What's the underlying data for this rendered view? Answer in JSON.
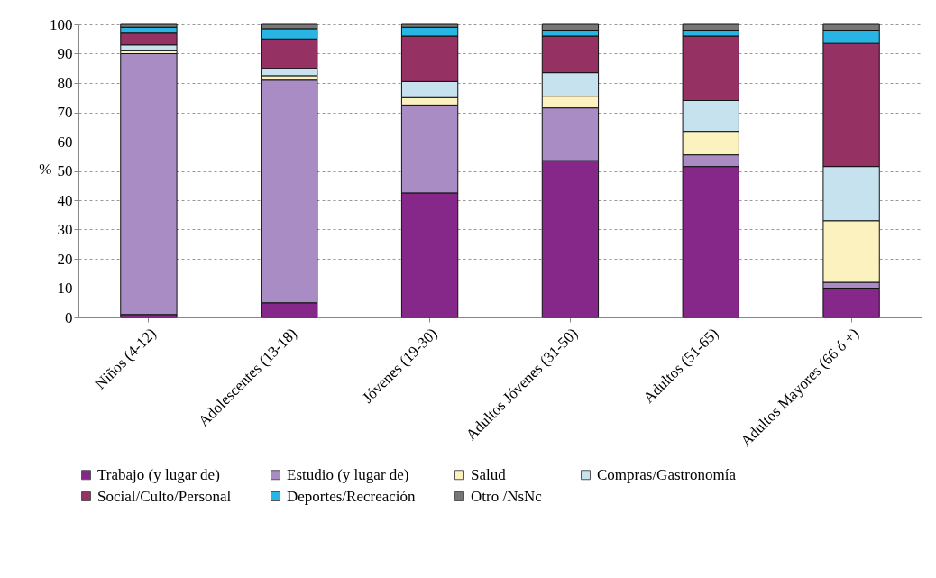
{
  "chart_data": {
    "type": "bar",
    "stacked": true,
    "ylabel": "%",
    "categories": [
      "Niños (4-12)",
      "Adolescentes (13-18)",
      "Jóvenes (19-30)",
      "Adultos Jóvenes (31-50)",
      "Adultos (51-65)",
      "Adultos Mayores (66 ó +)"
    ],
    "series": [
      {
        "name": "Trabajo (y lugar de)",
        "color": "#86278a",
        "values": [
          1,
          5,
          42.5,
          53.5,
          51.5,
          10
        ]
      },
      {
        "name": "Estudio (y lugar de)",
        "color": "#a98cc4",
        "values": [
          89,
          76,
          30,
          18,
          4,
          2
        ]
      },
      {
        "name": "Salud",
        "color": "#fbf2c0",
        "values": [
          1,
          1.5,
          2.5,
          4,
          8,
          21
        ]
      },
      {
        "name": "Compras/Gastronomía",
        "color": "#c6e2ee",
        "values": [
          2,
          2.5,
          5.5,
          8,
          10.5,
          18.5
        ]
      },
      {
        "name": "Social/Culto/Personal",
        "color": "#953163",
        "values": [
          4,
          10,
          15.5,
          12.5,
          22,
          42
        ]
      },
      {
        "name": "Deportes/Recreación",
        "color": "#29b5e3",
        "values": [
          2,
          3.5,
          3,
          2,
          2,
          4.5
        ]
      },
      {
        "name": "Otro /NsNc",
        "color": "#777777",
        "values": [
          1,
          1.5,
          1,
          2,
          2,
          2
        ]
      }
    ],
    "ylim": [
      0,
      100
    ],
    "yticks": [
      0,
      10,
      20,
      30,
      40,
      50,
      60,
      70,
      80,
      90,
      100
    ],
    "grid": "y",
    "legend": "bottom"
  }
}
